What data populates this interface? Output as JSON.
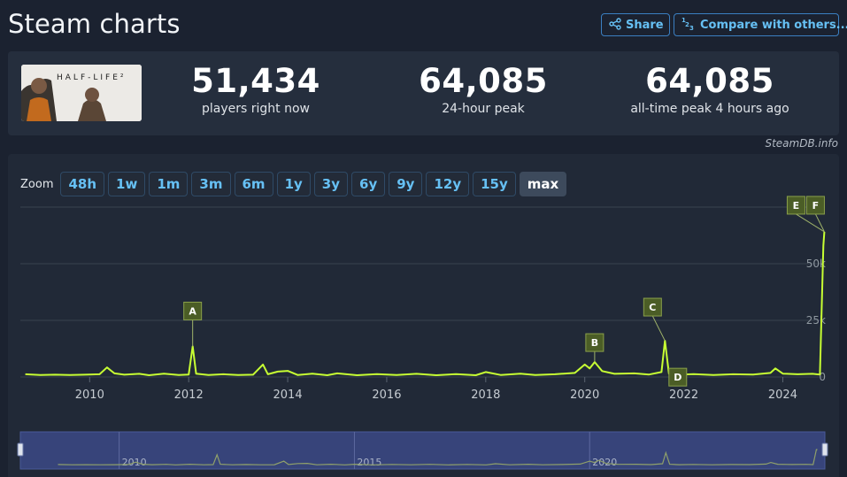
{
  "header": {
    "title": "Steam charts",
    "share_label": "Share",
    "compare_label": "Compare with others...",
    "compare_icon_text": "1/2/3"
  },
  "stats": {
    "game_logo_text": "HALF-LIFE²",
    "current_value": "51,434",
    "current_label": "players right now",
    "peak24_value": "64,085",
    "peak24_label": "24-hour peak",
    "alltime_value": "64,085",
    "alltime_label": "all-time peak 4 hours ago"
  },
  "credit": "SteamDB.info",
  "zoom": {
    "label": "Zoom",
    "options": [
      "48h",
      "1w",
      "1m",
      "3m",
      "6m",
      "1y",
      "3y",
      "6y",
      "9y",
      "12y",
      "15y",
      "max"
    ],
    "selected": "max"
  },
  "colors": {
    "line": "#c7ff33",
    "accent": "#66c0f4",
    "marker_bg": "#4b5d26",
    "navigator_bg": "#37447a"
  },
  "chart_data": {
    "type": "line",
    "series": [
      {
        "values": [
          [
            2008.7,
            1200
          ],
          [
            2009.0,
            900
          ],
          [
            2009.3,
            1000
          ],
          [
            2009.6,
            900
          ],
          [
            2009.9,
            1000
          ],
          [
            2010.2,
            1200
          ],
          [
            2010.35,
            4200
          ],
          [
            2010.5,
            1600
          ],
          [
            2010.7,
            1000
          ],
          [
            2011.0,
            1400
          ],
          [
            2011.2,
            800
          ],
          [
            2011.5,
            1500
          ],
          [
            2011.8,
            900
          ],
          [
            2012.0,
            1100
          ],
          [
            2012.08,
            13500
          ],
          [
            2012.15,
            1500
          ],
          [
            2012.4,
            900
          ],
          [
            2012.7,
            1200
          ],
          [
            2013.0,
            900
          ],
          [
            2013.3,
            1000
          ],
          [
            2013.5,
            5500
          ],
          [
            2013.6,
            1200
          ],
          [
            2013.8,
            2400
          ],
          [
            2014.0,
            2700
          ],
          [
            2014.2,
            900
          ],
          [
            2014.5,
            1500
          ],
          [
            2014.8,
            800
          ],
          [
            2015.0,
            1600
          ],
          [
            2015.4,
            800
          ],
          [
            2015.8,
            1300
          ],
          [
            2016.2,
            900
          ],
          [
            2016.6,
            1400
          ],
          [
            2017.0,
            800
          ],
          [
            2017.4,
            1300
          ],
          [
            2017.8,
            800
          ],
          [
            2018.0,
            2200
          ],
          [
            2018.3,
            900
          ],
          [
            2018.7,
            1500
          ],
          [
            2019.0,
            900
          ],
          [
            2019.4,
            1200
          ],
          [
            2019.8,
            1800
          ],
          [
            2020.0,
            5500
          ],
          [
            2020.1,
            3800
          ],
          [
            2020.2,
            6600
          ],
          [
            2020.35,
            2600
          ],
          [
            2020.6,
            1400
          ],
          [
            2021.0,
            1600
          ],
          [
            2021.3,
            1100
          ],
          [
            2021.55,
            2200
          ],
          [
            2021.62,
            16000
          ],
          [
            2021.7,
            1500
          ],
          [
            2021.9,
            1000
          ],
          [
            2022.2,
            1300
          ],
          [
            2022.6,
            900
          ],
          [
            2023.0,
            1200
          ],
          [
            2023.4,
            1100
          ],
          [
            2023.75,
            1800
          ],
          [
            2023.85,
            3800
          ],
          [
            2024.0,
            1500
          ],
          [
            2024.3,
            1200
          ],
          [
            2024.6,
            1400
          ],
          [
            2024.75,
            1100
          ],
          [
            2024.82,
            58000
          ],
          [
            2024.84,
            64085
          ]
        ]
      }
    ],
    "x_ticks": [
      "2010",
      "2012",
      "2014",
      "2016",
      "2018",
      "2020",
      "2022",
      "2024"
    ],
    "y_ticks": [
      "0",
      "25k",
      "50k"
    ],
    "xlim": [
      2008.6,
      2024.85
    ],
    "ylim": [
      0,
      75000
    ],
    "annotations": [
      {
        "label": "A",
        "x": 2012.08,
        "y": 13500
      },
      {
        "label": "B",
        "x": 2020.2,
        "y": 6600
      },
      {
        "label": "C",
        "x": 2021.62,
        "y": 16000
      },
      {
        "label": "D",
        "x": 2021.7,
        "y": 1500
      },
      {
        "label": "E",
        "x": 2024.84,
        "y": 64085
      },
      {
        "label": "F",
        "x": 2024.84,
        "y": 64085
      }
    ],
    "navigator_ticks": [
      "2010",
      "2015",
      "2020"
    ],
    "navigator_xlim": [
      2007.9,
      2025.0
    ],
    "grid": true,
    "legend": "none"
  }
}
